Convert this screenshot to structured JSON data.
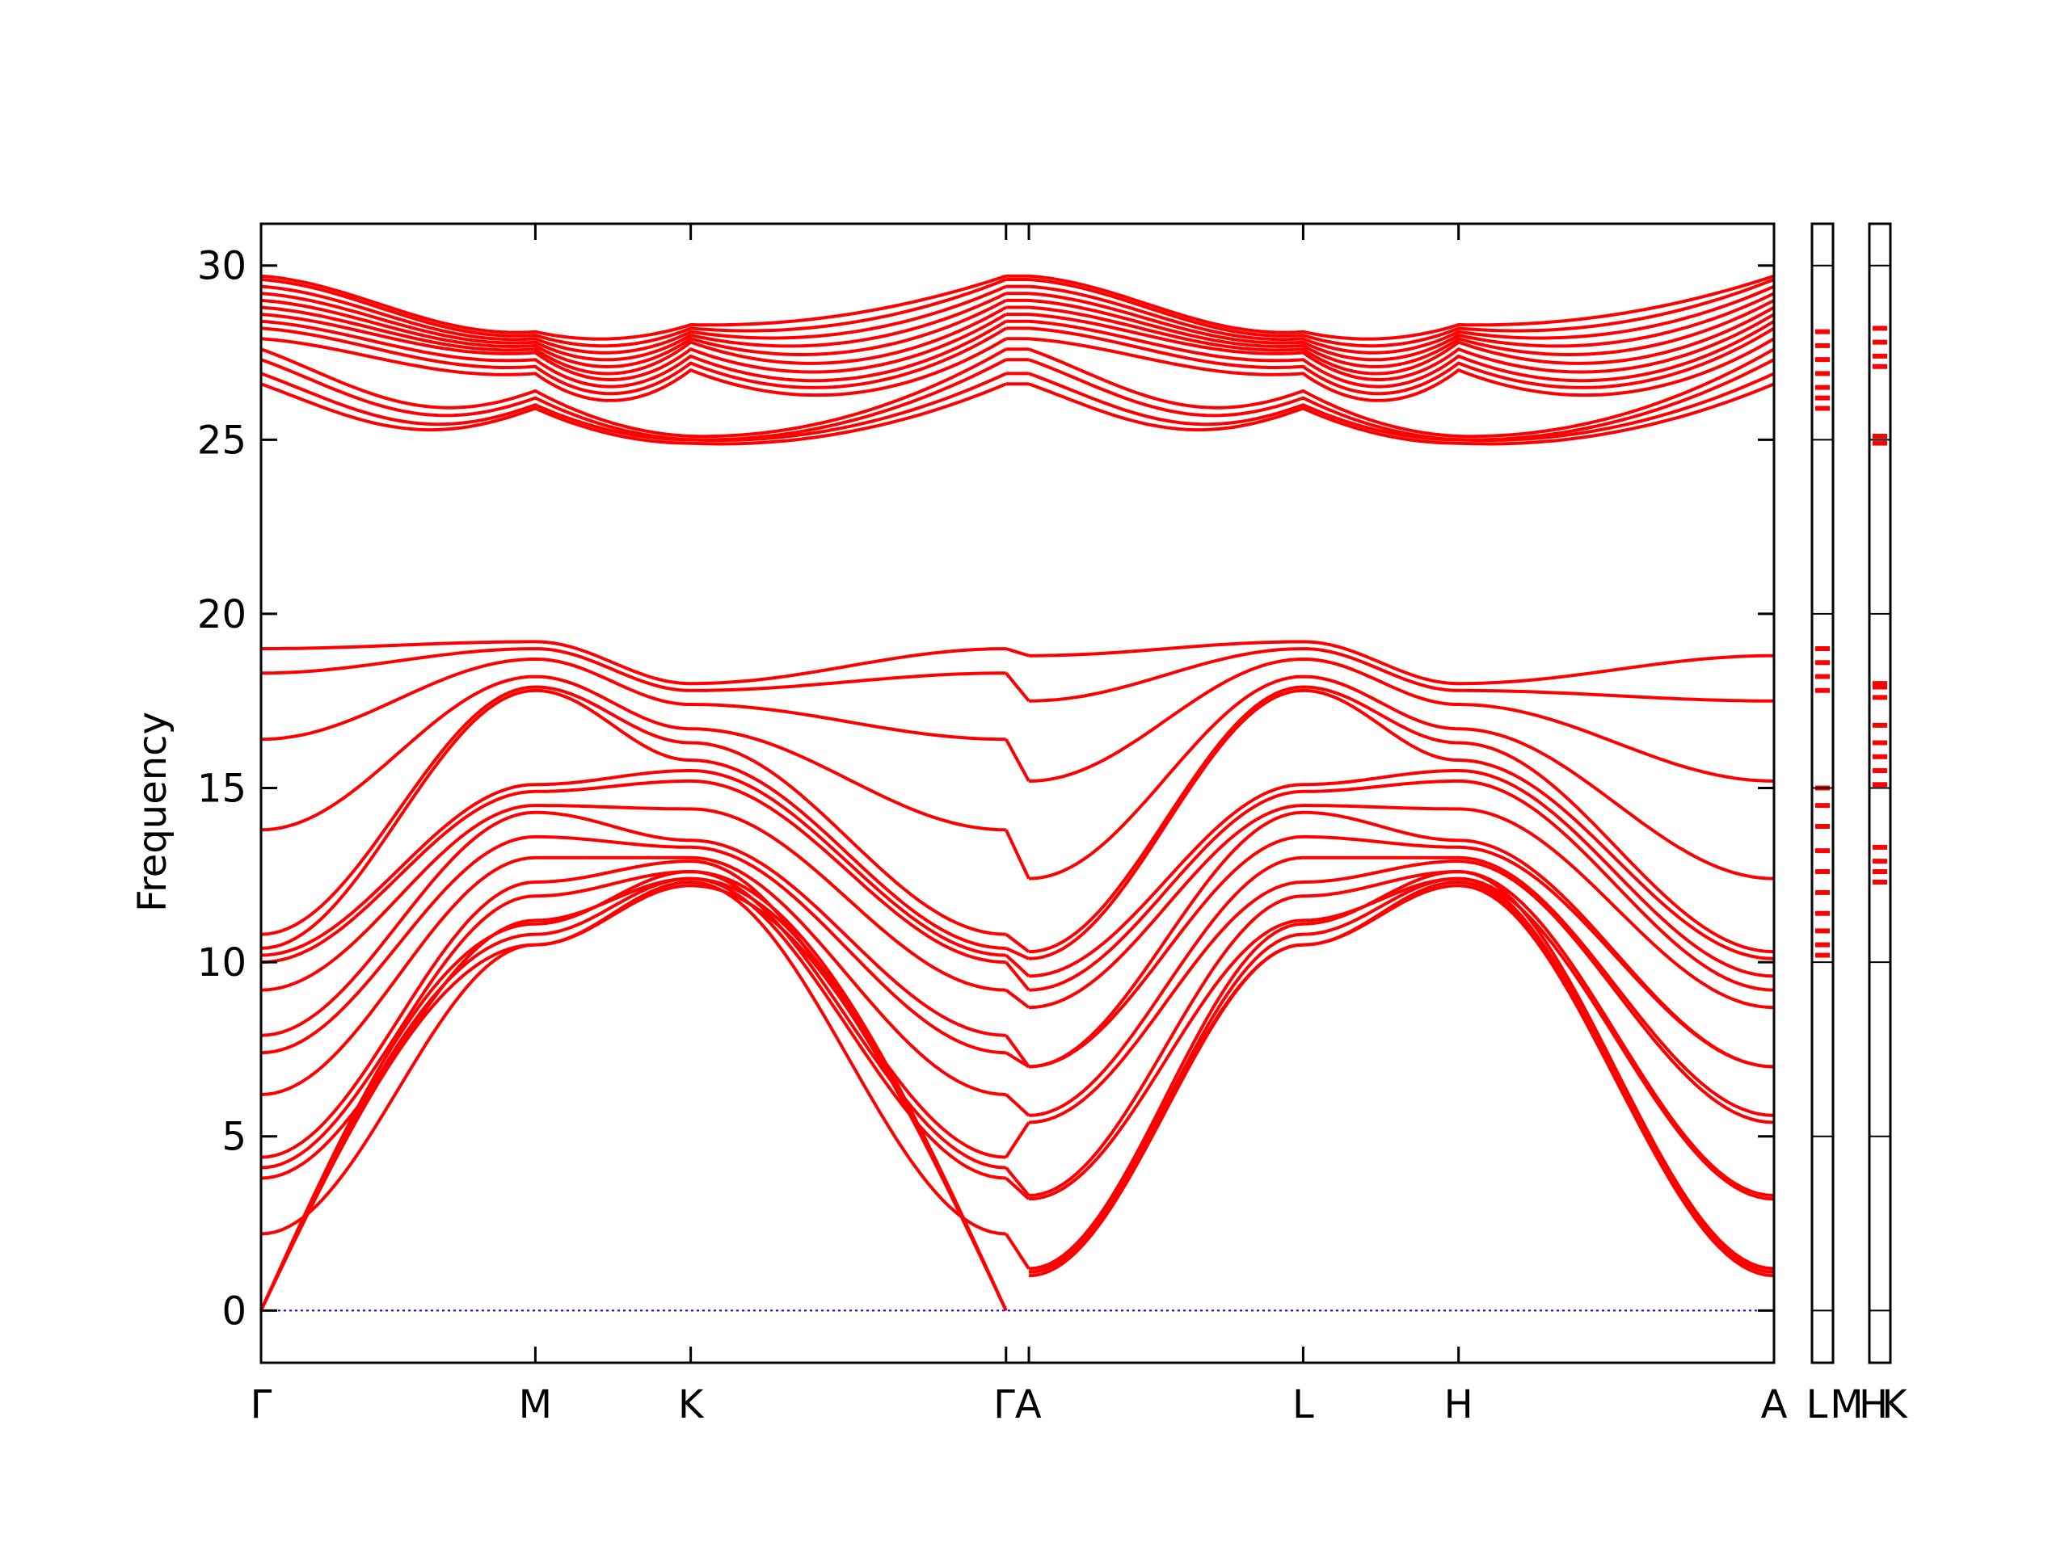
{
  "chart_data": {
    "type": "line",
    "title": "",
    "ylabel": "Frequency",
    "xlabel": "",
    "ylim": [
      -1.5,
      31.2
    ],
    "yticks": [
      0,
      5,
      10,
      15,
      20,
      25,
      30
    ],
    "grid": false,
    "legend": "none",
    "colors": {
      "bands": "#ff0000",
      "zero_line": "#0000ff",
      "frame": "#000000"
    },
    "path": {
      "labels": [
        "Γ",
        "M",
        "K",
        "ΓA",
        "L",
        "H",
        "A"
      ],
      "side_labels": [
        "L",
        "M",
        "H",
        "K"
      ],
      "points": [
        {
          "label": "Γ",
          "x": 0
        },
        {
          "label": "M",
          "x": 0.1813
        },
        {
          "label": "K",
          "x": 0.284
        },
        {
          "label": "Γ",
          "x": 0.4924
        },
        {
          "label": "A",
          "x": 0.5075
        },
        {
          "label": "L",
          "x": 0.6888
        },
        {
          "label": "H",
          "x": 0.7915
        },
        {
          "label": "A",
          "x": 1.0
        }
      ]
    },
    "groups": [
      {
        "name": "high",
        "gamma": [
          26.6,
          26.9,
          27.3,
          27.6,
          27.9,
          28.2,
          28.4,
          28.6,
          28.8,
          29.0,
          29.2,
          29.4,
          29.6,
          29.7
        ],
        "m": [
          25.9,
          26.0,
          26.2,
          26.4,
          26.9,
          27.1,
          27.3,
          27.5,
          27.6,
          27.7,
          27.8,
          27.9,
          28.0,
          28.1
        ],
        "k": [
          24.9,
          25.0,
          25.0,
          25.1,
          27.0,
          27.2,
          27.4,
          27.6,
          27.8,
          27.9,
          28.0,
          28.1,
          28.2,
          28.3
        ],
        "mk_mid": [
          24.9,
          25.0,
          25.1,
          25.2,
          25.3,
          25.5,
          25.7,
          25.9,
          26.1,
          26.4,
          26.7,
          27.0,
          27.3,
          27.6
        ],
        "kg_mid": [
          24.7,
          24.8,
          24.9,
          25.0,
          25.2,
          25.4,
          25.6,
          25.9,
          26.2,
          26.6,
          27.0,
          27.4,
          27.8,
          28.2
        ],
        "a": [
          26.6,
          26.9,
          27.3,
          27.6,
          27.9,
          28.2,
          28.4,
          28.6,
          28.8,
          29.0,
          29.2,
          29.4,
          29.6,
          29.7
        ]
      },
      {
        "name": "optic",
        "gamma": [
          19.0,
          18.3,
          16.4,
          13.8,
          10.8,
          10.4,
          10.2,
          10.0,
          9.2,
          7.9,
          7.4,
          6.2,
          4.4,
          4.1,
          3.8,
          2.2
        ],
        "m": [
          19.2,
          19.0,
          18.7,
          18.2,
          17.9,
          17.8,
          15.1,
          14.9,
          14.5,
          14.3,
          13.6,
          13.0,
          12.3,
          11.9,
          11.2,
          10.5
        ],
        "k": [
          18.0,
          17.8,
          17.4,
          16.7,
          16.3,
          15.8,
          15.5,
          15.2,
          14.4,
          13.5,
          13.3,
          13.0,
          12.9,
          12.6,
          12.4,
          12.3
        ],
        "a": [
          18.8,
          17.5,
          15.2,
          12.4,
          10.3,
          10.1,
          9.6,
          9.2,
          8.7,
          7.0,
          7.0,
          5.6,
          5.4,
          3.3,
          3.2,
          1.2
        ]
      },
      {
        "name": "acoustic",
        "gamma": [
          0.0,
          0.0,
          0.0
        ],
        "m": [
          10.5,
          10.8,
          11.1
        ],
        "k": [
          12.2,
          12.4,
          12.6
        ],
        "a": [
          1.0,
          1.1,
          1.2
        ]
      }
    ],
    "dos_panels": [
      {
        "name": "L-M",
        "bands": [
          10.2,
          10.5,
          10.9,
          11.4,
          12.0,
          12.6,
          13.2,
          13.9,
          14.5,
          15.0,
          17.8,
          18.2,
          18.6,
          19.0,
          25.9,
          26.2,
          26.5,
          26.9,
          27.3,
          27.7,
          28.1
        ]
      },
      {
        "name": "H-K",
        "bands": [
          12.3,
          12.6,
          12.9,
          13.3,
          15.1,
          15.5,
          15.9,
          16.3,
          16.8,
          17.6,
          17.9,
          18.0,
          24.9,
          25.1,
          27.1,
          27.4,
          27.8,
          28.2
        ]
      }
    ]
  }
}
